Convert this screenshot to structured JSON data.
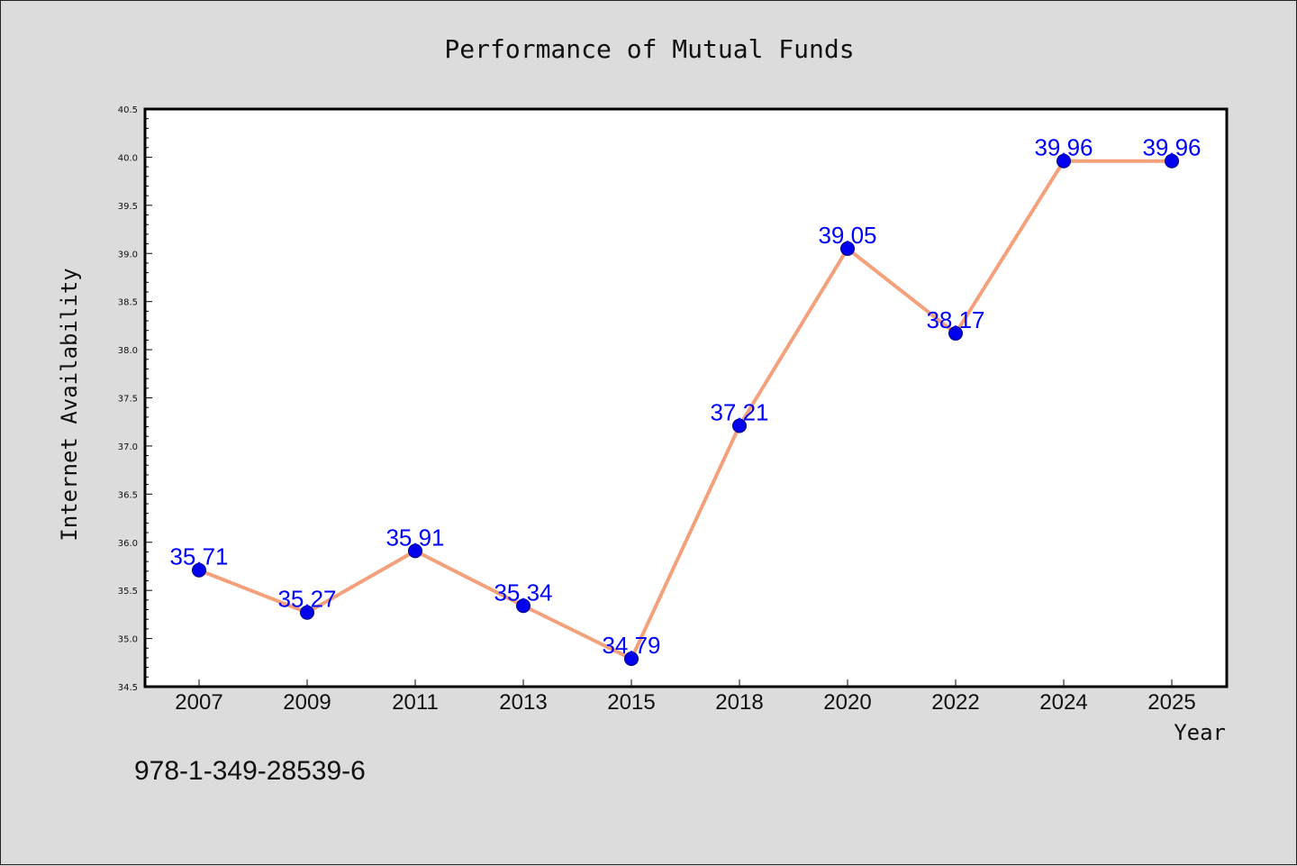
{
  "chart_data": {
    "type": "line",
    "title": "Performance of Mutual Funds",
    "xlabel": "Year",
    "ylabel": "Internet Availability",
    "categories": [
      "2007",
      "2009",
      "2011",
      "2013",
      "2015",
      "2018",
      "2020",
      "2022",
      "2024",
      "2025"
    ],
    "values": [
      35.71,
      35.27,
      35.91,
      35.34,
      34.79,
      37.21,
      39.05,
      38.17,
      39.96,
      39.96
    ],
    "data_labels": [
      "35.71",
      "35.27",
      "35.91",
      "35.34",
      "34.79",
      "37.21",
      "39.05",
      "38.17",
      "39.96",
      "39.96"
    ],
    "ylim": [
      34.5,
      40.5
    ],
    "yticks": [
      "34.5",
      "35.0",
      "35.5",
      "36.0",
      "36.5",
      "37.0",
      "37.5",
      "38.0",
      "38.5",
      "39.0",
      "39.5",
      "40.0",
      "40.5"
    ],
    "grid": false,
    "legend": "none",
    "colors": {
      "line": "#f4a07a",
      "marker": "#0000ee",
      "data_label": "#0000ff",
      "background": "#dcdcdc",
      "plot_background": "#ffffff"
    }
  },
  "footer": {
    "isbn": "978-1-349-28539-6"
  }
}
